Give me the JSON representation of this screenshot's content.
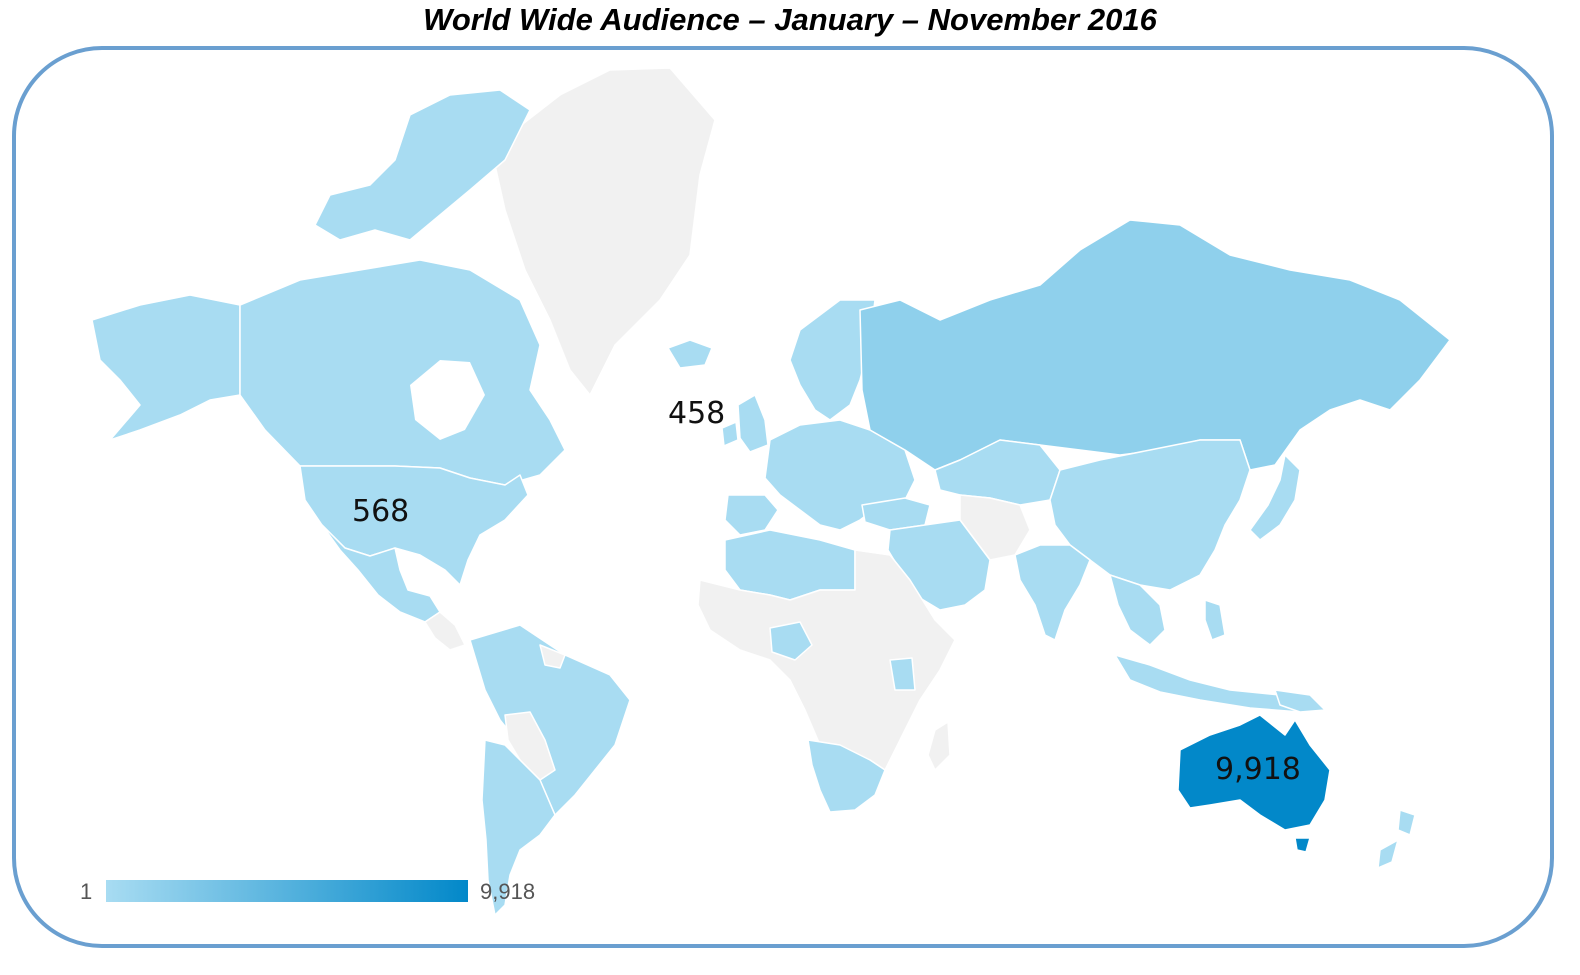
{
  "title": "World Wide Audience – January – November 2016",
  "colors": {
    "low": "#a8dcf2",
    "mid": "#8fd0ec",
    "high": "#0288c9",
    "no_data": "#f1f1f1",
    "frame": "#6a9fd0"
  },
  "map_labels": {
    "united_states": "568",
    "united_kingdom": "458",
    "australia": "9,918"
  },
  "legend": {
    "min": "1",
    "max": "9,918"
  }
}
